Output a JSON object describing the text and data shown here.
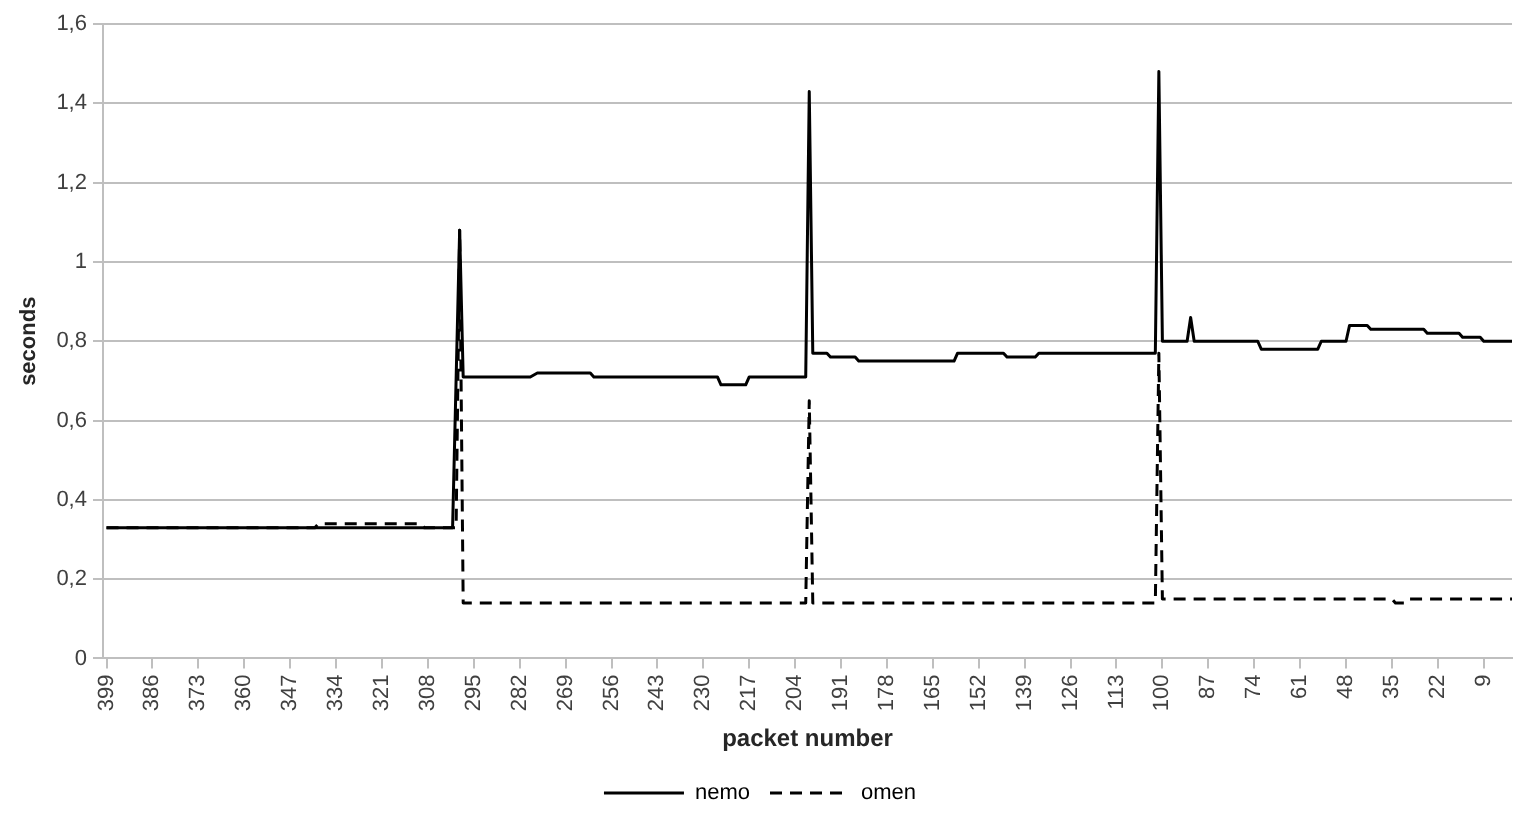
{
  "chart_data": {
    "type": "line",
    "xlabel": "packet number",
    "ylabel": "seconds",
    "xlim": [
      400,
      1
    ],
    "ylim": [
      0,
      1.6
    ],
    "xticks": [
      399,
      386,
      373,
      360,
      347,
      334,
      321,
      308,
      295,
      282,
      269,
      256,
      243,
      230,
      217,
      204,
      191,
      178,
      165,
      152,
      139,
      126,
      113,
      100,
      87,
      74,
      61,
      48,
      35,
      22,
      9
    ],
    "yticks": [
      0,
      {
        "value": 0.2,
        "label": "0,2"
      },
      {
        "value": 0.4,
        "label": "0,4"
      },
      {
        "value": 0.6,
        "label": "0,6"
      },
      {
        "value": 0.8,
        "label": "0,8"
      },
      1,
      {
        "value": 1.2,
        "label": "1,2"
      },
      {
        "value": 1.4,
        "label": "1,4"
      },
      {
        "value": 1.6,
        "label": "1,6"
      }
    ],
    "grid": "y",
    "legend": "bottom",
    "marker": "none",
    "series": [
      {
        "name": "nemo",
        "color": "#000000",
        "line_style": "solid",
        "x": [
          399,
          301,
          299,
          298,
          279,
          277,
          262,
          261,
          226,
          225,
          218,
          217,
          201,
          200,
          199,
          195,
          194,
          187,
          186,
          159,
          158,
          145,
          144,
          136,
          135,
          102,
          101,
          100,
          93,
          92,
          91,
          73,
          72,
          56,
          55,
          48,
          47,
          42,
          41,
          26,
          25,
          16,
          15,
          10,
          9,
          1
        ],
        "values": [
          0.33,
          0.33,
          1.08,
          0.71,
          0.71,
          0.72,
          0.72,
          0.71,
          0.71,
          0.69,
          0.69,
          0.71,
          0.71,
          1.43,
          0.77,
          0.77,
          0.76,
          0.76,
          0.75,
          0.75,
          0.77,
          0.77,
          0.76,
          0.76,
          0.77,
          0.77,
          1.48,
          0.8,
          0.8,
          0.86,
          0.8,
          0.8,
          0.78,
          0.78,
          0.8,
          0.8,
          0.84,
          0.84,
          0.83,
          0.83,
          0.82,
          0.82,
          0.81,
          0.81,
          0.8,
          0.8
        ]
      },
      {
        "name": "omen",
        "color": "#000000",
        "line_style": "dashed",
        "x": [
          399,
          340,
          339,
          310,
          309,
          300,
          299,
          298,
          201,
          200,
          199,
          102,
          101,
          100,
          35,
          34,
          31,
          30,
          1
        ],
        "values": [
          0.33,
          0.33,
          0.34,
          0.34,
          0.33,
          0.33,
          1.08,
          0.14,
          0.14,
          0.65,
          0.14,
          0.14,
          0.77,
          0.15,
          0.15,
          0.14,
          0.14,
          0.15,
          0.15
        ]
      }
    ]
  }
}
